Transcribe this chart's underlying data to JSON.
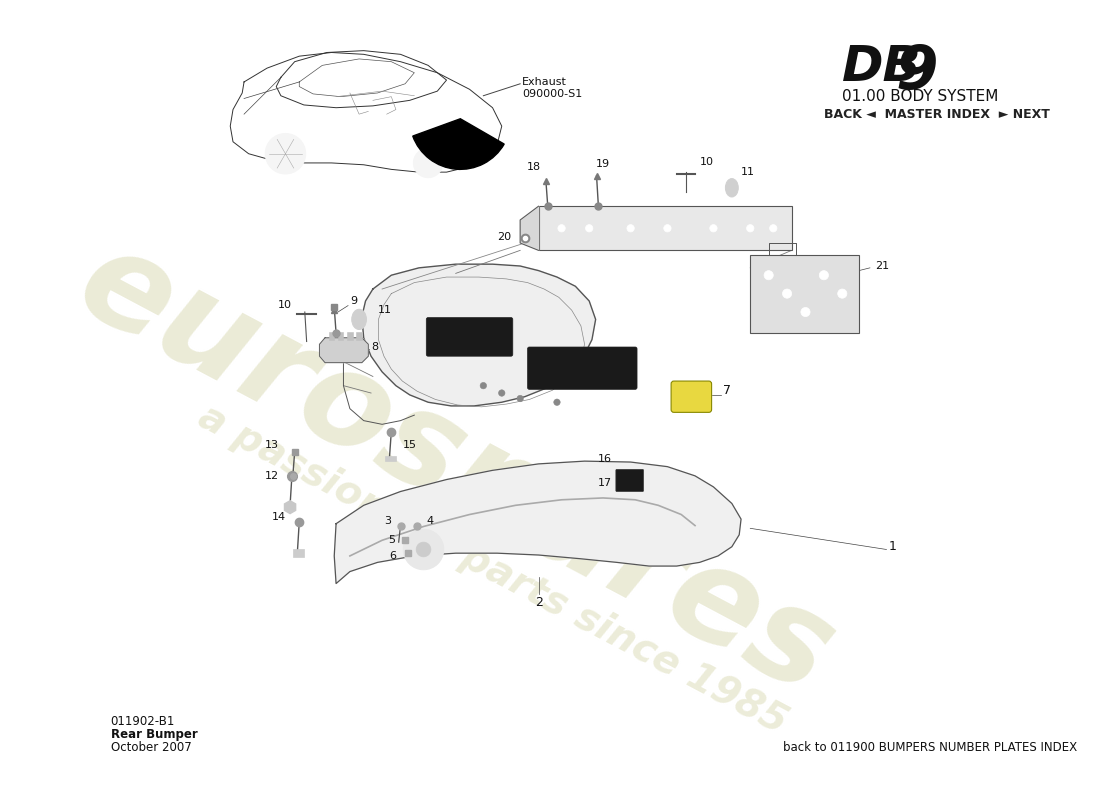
{
  "title": "DB 9",
  "subtitle": "01.00 BODY SYSTEM",
  "nav_text": "BACK ◄  MASTER INDEX  ► NEXT",
  "part_code": "011902-B1",
  "part_name": "Rear Bumper",
  "date": "October 2007",
  "footer_text": "back to 011900 BUMPERS NUMBER PLATES INDEX",
  "exhaust_label": "Exhaust\n090000-S1",
  "bg_color": "#ffffff",
  "watermark_primary": "#d8d8b0",
  "watermark_secondary": "#e0e0c0",
  "title_color": "#111111"
}
